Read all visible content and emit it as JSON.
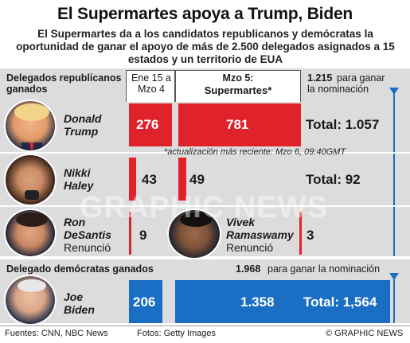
{
  "title": "El Supermartes apoya a Trump, Biden",
  "subtitle": "El Supermartes da a los candidatos republicanos y demócratas la oportunidad de ganar el apoyo de más de 2.500 delegados asignados a 15 estados y un territorio de EUA",
  "rep_header": {
    "label": "Delegados republicanos ganados",
    "col1": "Ene 15 a Mzo 4",
    "col2_line1": "Mzo 5:",
    "col2_line2": "Supermartes*",
    "goal_number": "1.215",
    "goal_text": "para ganar la nominación"
  },
  "update_note": "*actualización más reciente: Mzo 6, 09:40GMT",
  "dem_header": {
    "label": "Delegado demócratas ganados",
    "goal_number": "1.968",
    "goal_text": "para ganar la nominación"
  },
  "candidates": {
    "trump": {
      "first": "Donald",
      "last": "Trump",
      "before": "276",
      "super": "781",
      "total": "Total: 1.057"
    },
    "haley": {
      "first": "Nikki",
      "last": "Haley",
      "before": "43",
      "super": "49",
      "total": "Total: 92"
    },
    "desantis": {
      "first": "Ron",
      "last": "DeSantis",
      "status": "Renunció",
      "value": "9"
    },
    "ramaswamy": {
      "first": "Vivek",
      "last": "Ramaswamy",
      "status": "Renunció",
      "value": "3"
    },
    "biden": {
      "first": "Joe",
      "last": "Biden",
      "before": "206",
      "super": "1.358",
      "total": "Total: 1,564"
    }
  },
  "footer": {
    "sources": "Fuentes: CNN, NBC News",
    "photos": "Fotos: Getty Images",
    "credit": "© GRAPHIC NEWS"
  },
  "watermark": "GRAPHIC NEWS",
  "colors": {
    "republican": "#e0232a",
    "democrat": "#1a6fc4",
    "panel": "#dcdcdc"
  },
  "chart_data": {
    "type": "bar",
    "title": "El Supermartes apoya a Trump, Biden",
    "categories": [
      "Donald Trump",
      "Nikki Haley",
      "Ron DeSantis",
      "Vivek Ramaswamy",
      "Joe Biden"
    ],
    "series": [
      {
        "name": "Ene 15 a Mzo 4",
        "values": [
          276,
          43,
          null,
          null,
          206
        ]
      },
      {
        "name": "Mzo 5: Supermartes*",
        "values": [
          781,
          49,
          null,
          null,
          1358
        ]
      }
    ],
    "totals": [
      1057,
      92,
      9,
      3,
      1564
    ],
    "goals": {
      "republican": 1215,
      "democrat": 1968
    }
  }
}
